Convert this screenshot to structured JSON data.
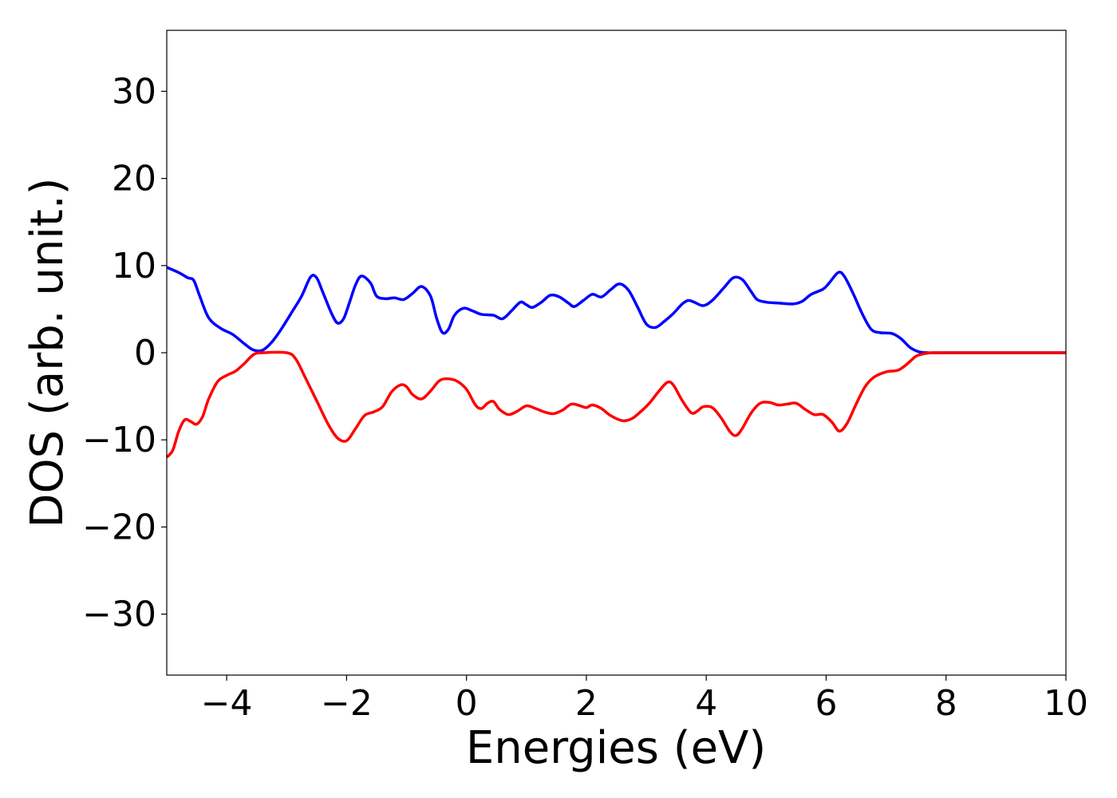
{
  "chart_data": {
    "type": "line",
    "xlabel": "Energies (eV)",
    "ylabel": "DOS (arb. unit.)",
    "xlim": [
      -5,
      10
    ],
    "ylim": [
      -37,
      37
    ],
    "xticks": [
      -4,
      -2,
      0,
      2,
      4,
      6,
      8,
      10
    ],
    "xtick_labels": [
      "−4",
      "−2",
      "0",
      "2",
      "4",
      "6",
      "8",
      "10"
    ],
    "yticks": [
      30,
      20,
      10,
      0,
      -10,
      -20,
      -30
    ],
    "ytick_labels": [
      "30",
      "20",
      "10",
      "0",
      "−10",
      "−20",
      "−30"
    ],
    "grid": false,
    "legend": "none",
    "series": [
      {
        "color": "#0000ff",
        "points": [
          [
            -5.0,
            9.8
          ],
          [
            -4.8,
            9.2
          ],
          [
            -4.65,
            8.6
          ],
          [
            -4.55,
            8.3
          ],
          [
            -4.45,
            6.5
          ],
          [
            -4.3,
            4.0
          ],
          [
            -4.1,
            2.8
          ],
          [
            -3.9,
            2.1
          ],
          [
            -3.7,
            1.0
          ],
          [
            -3.55,
            0.3
          ],
          [
            -3.4,
            0.3
          ],
          [
            -3.25,
            1.2
          ],
          [
            -3.1,
            2.6
          ],
          [
            -2.9,
            4.8
          ],
          [
            -2.75,
            6.5
          ],
          [
            -2.6,
            8.7
          ],
          [
            -2.5,
            8.6
          ],
          [
            -2.4,
            7.0
          ],
          [
            -2.25,
            4.5
          ],
          [
            -2.15,
            3.4
          ],
          [
            -2.05,
            3.9
          ],
          [
            -1.95,
            5.8
          ],
          [
            -1.85,
            7.8
          ],
          [
            -1.75,
            8.8
          ],
          [
            -1.6,
            8.0
          ],
          [
            -1.5,
            6.5
          ],
          [
            -1.35,
            6.2
          ],
          [
            -1.2,
            6.3
          ],
          [
            -1.05,
            6.1
          ],
          [
            -0.9,
            6.8
          ],
          [
            -0.75,
            7.6
          ],
          [
            -0.6,
            6.5
          ],
          [
            -0.5,
            4.0
          ],
          [
            -0.4,
            2.3
          ],
          [
            -0.3,
            2.7
          ],
          [
            -0.2,
            4.3
          ],
          [
            -0.05,
            5.1
          ],
          [
            0.1,
            4.8
          ],
          [
            0.25,
            4.4
          ],
          [
            0.45,
            4.3
          ],
          [
            0.6,
            3.9
          ],
          [
            0.75,
            4.8
          ],
          [
            0.9,
            5.8
          ],
          [
            1.0,
            5.5
          ],
          [
            1.1,
            5.2
          ],
          [
            1.25,
            5.8
          ],
          [
            1.4,
            6.6
          ],
          [
            1.55,
            6.4
          ],
          [
            1.7,
            5.7
          ],
          [
            1.8,
            5.3
          ],
          [
            1.95,
            6.0
          ],
          [
            2.1,
            6.7
          ],
          [
            2.25,
            6.4
          ],
          [
            2.4,
            7.2
          ],
          [
            2.55,
            7.9
          ],
          [
            2.7,
            7.2
          ],
          [
            2.85,
            5.3
          ],
          [
            3.0,
            3.3
          ],
          [
            3.15,
            2.9
          ],
          [
            3.3,
            3.6
          ],
          [
            3.45,
            4.5
          ],
          [
            3.6,
            5.6
          ],
          [
            3.7,
            6.0
          ],
          [
            3.8,
            5.8
          ],
          [
            3.95,
            5.4
          ],
          [
            4.1,
            6.0
          ],
          [
            4.3,
            7.5
          ],
          [
            4.45,
            8.6
          ],
          [
            4.6,
            8.4
          ],
          [
            4.75,
            7.0
          ],
          [
            4.85,
            6.1
          ],
          [
            5.0,
            5.8
          ],
          [
            5.2,
            5.7
          ],
          [
            5.45,
            5.6
          ],
          [
            5.6,
            5.9
          ],
          [
            5.75,
            6.7
          ],
          [
            5.95,
            7.3
          ],
          [
            6.05,
            8.0
          ],
          [
            6.2,
            9.2
          ],
          [
            6.3,
            8.8
          ],
          [
            6.45,
            6.8
          ],
          [
            6.6,
            4.5
          ],
          [
            6.75,
            2.7
          ],
          [
            6.9,
            2.3
          ],
          [
            7.1,
            2.2
          ],
          [
            7.25,
            1.6
          ],
          [
            7.4,
            0.6
          ],
          [
            7.55,
            0.1
          ],
          [
            7.7,
            0.0
          ],
          [
            8.0,
            0.0
          ],
          [
            10.0,
            0.0
          ]
        ]
      },
      {
        "color": "#ff0000",
        "points": [
          [
            -5.0,
            -12.0
          ],
          [
            -4.9,
            -11.2
          ],
          [
            -4.8,
            -9.0
          ],
          [
            -4.7,
            -7.7
          ],
          [
            -4.6,
            -7.9
          ],
          [
            -4.5,
            -8.2
          ],
          [
            -4.4,
            -7.3
          ],
          [
            -4.3,
            -5.3
          ],
          [
            -4.15,
            -3.3
          ],
          [
            -4.0,
            -2.6
          ],
          [
            -3.85,
            -2.1
          ],
          [
            -3.7,
            -1.2
          ],
          [
            -3.55,
            -0.2
          ],
          [
            -3.4,
            0.0
          ],
          [
            -3.0,
            0.0
          ],
          [
            -2.85,
            -0.7
          ],
          [
            -2.7,
            -2.7
          ],
          [
            -2.5,
            -5.5
          ],
          [
            -2.3,
            -8.3
          ],
          [
            -2.15,
            -9.8
          ],
          [
            -2.0,
            -10.1
          ],
          [
            -1.85,
            -8.7
          ],
          [
            -1.7,
            -7.2
          ],
          [
            -1.55,
            -6.8
          ],
          [
            -1.4,
            -6.2
          ],
          [
            -1.25,
            -4.5
          ],
          [
            -1.1,
            -3.7
          ],
          [
            -1.0,
            -3.9
          ],
          [
            -0.9,
            -4.8
          ],
          [
            -0.75,
            -5.3
          ],
          [
            -0.6,
            -4.4
          ],
          [
            -0.45,
            -3.2
          ],
          [
            -0.3,
            -3.0
          ],
          [
            -0.15,
            -3.3
          ],
          [
            0.0,
            -4.2
          ],
          [
            0.15,
            -6.0
          ],
          [
            0.25,
            -6.4
          ],
          [
            0.35,
            -5.8
          ],
          [
            0.45,
            -5.6
          ],
          [
            0.55,
            -6.5
          ],
          [
            0.7,
            -7.1
          ],
          [
            0.85,
            -6.7
          ],
          [
            1.0,
            -6.1
          ],
          [
            1.15,
            -6.4
          ],
          [
            1.3,
            -6.8
          ],
          [
            1.45,
            -7.0
          ],
          [
            1.6,
            -6.6
          ],
          [
            1.75,
            -5.9
          ],
          [
            1.9,
            -6.1
          ],
          [
            2.0,
            -6.3
          ],
          [
            2.1,
            -6.0
          ],
          [
            2.25,
            -6.4
          ],
          [
            2.4,
            -7.2
          ],
          [
            2.6,
            -7.8
          ],
          [
            2.75,
            -7.6
          ],
          [
            2.9,
            -6.8
          ],
          [
            3.05,
            -5.8
          ],
          [
            3.2,
            -4.5
          ],
          [
            3.35,
            -3.4
          ],
          [
            3.45,
            -3.7
          ],
          [
            3.6,
            -5.5
          ],
          [
            3.75,
            -6.9
          ],
          [
            3.85,
            -6.7
          ],
          [
            3.95,
            -6.2
          ],
          [
            4.1,
            -6.3
          ],
          [
            4.25,
            -7.5
          ],
          [
            4.4,
            -9.1
          ],
          [
            4.5,
            -9.5
          ],
          [
            4.6,
            -8.7
          ],
          [
            4.75,
            -6.9
          ],
          [
            4.9,
            -5.8
          ],
          [
            5.05,
            -5.7
          ],
          [
            5.2,
            -6.0
          ],
          [
            5.35,
            -5.9
          ],
          [
            5.5,
            -5.8
          ],
          [
            5.65,
            -6.5
          ],
          [
            5.8,
            -7.1
          ],
          [
            5.95,
            -7.1
          ],
          [
            6.1,
            -8.0
          ],
          [
            6.22,
            -9.0
          ],
          [
            6.35,
            -8.1
          ],
          [
            6.5,
            -5.9
          ],
          [
            6.65,
            -3.9
          ],
          [
            6.8,
            -2.8
          ],
          [
            7.0,
            -2.2
          ],
          [
            7.2,
            -2.0
          ],
          [
            7.35,
            -1.3
          ],
          [
            7.5,
            -0.4
          ],
          [
            7.65,
            -0.1
          ],
          [
            7.8,
            0.0
          ],
          [
            8.0,
            0.0
          ],
          [
            10.0,
            0.0
          ]
        ]
      }
    ]
  }
}
